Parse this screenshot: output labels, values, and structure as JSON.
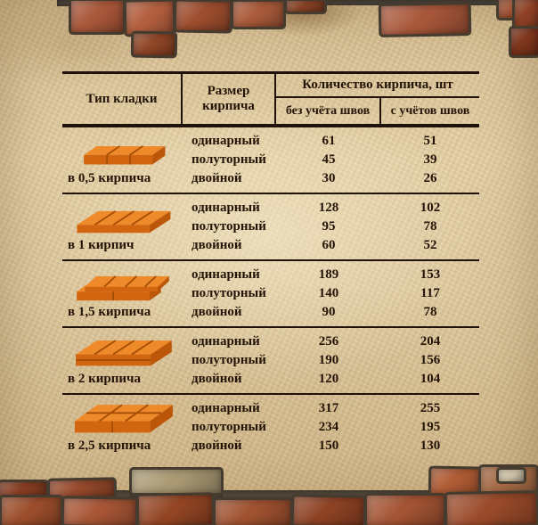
{
  "table": {
    "header": {
      "col_type": "Тип кладки",
      "col_size": "Размер кирпича",
      "col_qty": "Количество кирпича, шт",
      "col_qty_no_seams": "без учёта швов",
      "col_qty_with_seams": "с учётов швов"
    },
    "rows": [
      {
        "type": "в 0,5 кирпича",
        "illustration": "half-brick-course",
        "sizes": [
          {
            "name": "одинарный",
            "no_seams": "61",
            "with_seams": "51"
          },
          {
            "name": "полуторный",
            "no_seams": "45",
            "with_seams": "39"
          },
          {
            "name": "двойной",
            "no_seams": "30",
            "with_seams": "26"
          }
        ]
      },
      {
        "type": "в 1 кирпич",
        "illustration": "one-brick-layer",
        "sizes": [
          {
            "name": "одинарный",
            "no_seams": "128",
            "with_seams": "102"
          },
          {
            "name": "полуторный",
            "no_seams": "95",
            "with_seams": "78"
          },
          {
            "name": "двойной",
            "no_seams": "60",
            "with_seams": "52"
          }
        ]
      },
      {
        "type": "в 1,5 кирпича",
        "illustration": "one-and-half-brick-layer",
        "sizes": [
          {
            "name": "одинарный",
            "no_seams": "189",
            "with_seams": "153"
          },
          {
            "name": "полуторный",
            "no_seams": "140",
            "with_seams": "117"
          },
          {
            "name": "двойной",
            "no_seams": "90",
            "with_seams": "78"
          }
        ]
      },
      {
        "type": "в 2 кирпича",
        "illustration": "two-brick-layer",
        "sizes": [
          {
            "name": "одинарный",
            "no_seams": "256",
            "with_seams": "204"
          },
          {
            "name": "полуторный",
            "no_seams": "190",
            "with_seams": "156"
          },
          {
            "name": "двойной",
            "no_seams": "120",
            "with_seams": "104"
          }
        ]
      },
      {
        "type": "в 2,5 кирпича",
        "illustration": "two-and-half-brick-layer",
        "sizes": [
          {
            "name": "одинарный",
            "no_seams": "317",
            "with_seams": "255"
          },
          {
            "name": "полуторный",
            "no_seams": "234",
            "with_seams": "195"
          },
          {
            "name": "двойной",
            "no_seams": "150",
            "with_seams": "130"
          }
        ]
      }
    ]
  },
  "colors": {
    "parchment": "#dcc69c",
    "table_line": "#20120a",
    "text": "#241407",
    "illustration_brick": "#ef8a2b",
    "wall_brick": "#9a4c2c",
    "mortar": "#4e463a"
  },
  "chart_data": {
    "type": "table",
    "title": "Количество кирпича, шт",
    "columns": [
      "Тип кладки",
      "Размер кирпича",
      "без учёта швов",
      "с учётов швов"
    ],
    "rows": [
      [
        "в 0,5 кирпича",
        "одинарный",
        61,
        51
      ],
      [
        "в 0,5 кирпича",
        "полуторный",
        45,
        39
      ],
      [
        "в 0,5 кирпича",
        "двойной",
        30,
        26
      ],
      [
        "в 1 кирпич",
        "одинарный",
        128,
        102
      ],
      [
        "в 1 кирпич",
        "полуторный",
        95,
        78
      ],
      [
        "в 1 кирпич",
        "двойной",
        60,
        52
      ],
      [
        "в 1,5 кирпича",
        "одинарный",
        189,
        153
      ],
      [
        "в 1,5 кирпича",
        "полуторный",
        140,
        117
      ],
      [
        "в 1,5 кирпича",
        "двойной",
        90,
        78
      ],
      [
        "в 2 кирпича",
        "одинарный",
        256,
        204
      ],
      [
        "в 2 кирпича",
        "полуторный",
        190,
        156
      ],
      [
        "в 2 кирпича",
        "двойной",
        120,
        104
      ],
      [
        "в 2,5 кирпича",
        "одинарный",
        317,
        255
      ],
      [
        "в 2,5 кирпича",
        "полуторный",
        234,
        195
      ],
      [
        "в 2,5 кирпича",
        "двойной",
        150,
        130
      ]
    ]
  }
}
